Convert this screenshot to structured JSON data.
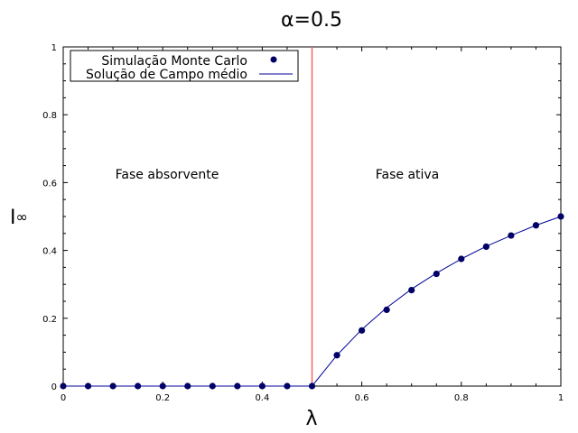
{
  "chart_data": {
    "type": "line",
    "title": "α=0.5",
    "xlabel": "λ",
    "ylabel": "I∞",
    "xlim": [
      0,
      1
    ],
    "ylim": [
      0,
      1
    ],
    "xticks": [
      "0",
      "0.2",
      "0.4",
      "0.6",
      "0.8",
      "1"
    ],
    "yticks": [
      "0",
      "0.2",
      "0.4",
      "0.6",
      "0.8",
      "1"
    ],
    "grid": false,
    "legend_position": "top-left",
    "annotations": [
      "Fase absorvente",
      "Fase ativa"
    ],
    "critical_line": {
      "x": 0.5,
      "color": "#ff4d4d"
    },
    "series": [
      {
        "name": "Simulação Monte Carlo",
        "style": "points",
        "color": "#000066",
        "x": [
          0,
          0.05,
          0.1,
          0.15,
          0.2,
          0.25,
          0.3,
          0.35,
          0.4,
          0.45,
          0.5,
          0.55,
          0.6,
          0.65,
          0.7,
          0.75,
          0.8,
          0.85,
          0.9,
          0.95,
          1.0
        ],
        "y": [
          0,
          0,
          0,
          0,
          0,
          0,
          0,
          0,
          0,
          0,
          0,
          0.091,
          0.164,
          0.225,
          0.283,
          0.331,
          0.375,
          0.411,
          0.444,
          0.474,
          0.5
        ]
      },
      {
        "name": "Solução de Campo médio",
        "style": "line",
        "color": "#000099",
        "x": [
          0,
          0.05,
          0.1,
          0.15,
          0.2,
          0.25,
          0.3,
          0.35,
          0.4,
          0.45,
          0.5,
          0.55,
          0.6,
          0.65,
          0.7,
          0.75,
          0.8,
          0.85,
          0.9,
          0.95,
          1.0
        ],
        "y": [
          0,
          0,
          0,
          0,
          0,
          0,
          0,
          0,
          0,
          0,
          0,
          0.091,
          0.167,
          0.231,
          0.286,
          0.333,
          0.375,
          0.412,
          0.444,
          0.474,
          0.5
        ]
      }
    ]
  }
}
